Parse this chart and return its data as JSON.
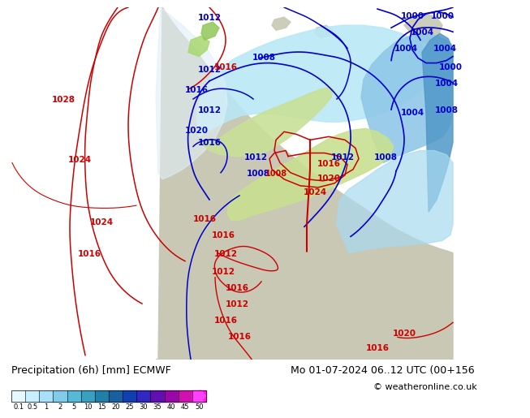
{
  "title_left": "Precipitation (6h) [mm] ECMWF",
  "title_right": "Mo 01-07-2024 06..12 UTC (00+156",
  "copyright": "© weatheronline.co.uk",
  "colorbar_labels": [
    "0.1",
    "0.5",
    "1",
    "2",
    "5",
    "10",
    "15",
    "20",
    "25",
    "30",
    "35",
    "40",
    "45",
    "50"
  ],
  "colorbar_colors": [
    "#e8f8ff",
    "#c8eeff",
    "#a8e0f8",
    "#80cce8",
    "#58b8d8",
    "#38a0c0",
    "#2080a8",
    "#1860a0",
    "#1040b0",
    "#3028c0",
    "#6010b0",
    "#9808a8",
    "#d010b0",
    "#f820d0",
    "#ff40ff"
  ],
  "ocean_color": "#c8dff0",
  "land_color": "#c8c8b4",
  "light_precip_color": "#c0e8f0",
  "mod_precip_color": "#90d0e8",
  "heavy_precip_color": "#60b8d8",
  "green_precip_color": "#c8e0a0",
  "blue_line_color": "#0000cc",
  "red_line_color": "#cc0000",
  "bg_bottom": "#ffffff",
  "label_fontsize": 8,
  "title_fontsize": 9,
  "isobar_fontsize": 7.5
}
